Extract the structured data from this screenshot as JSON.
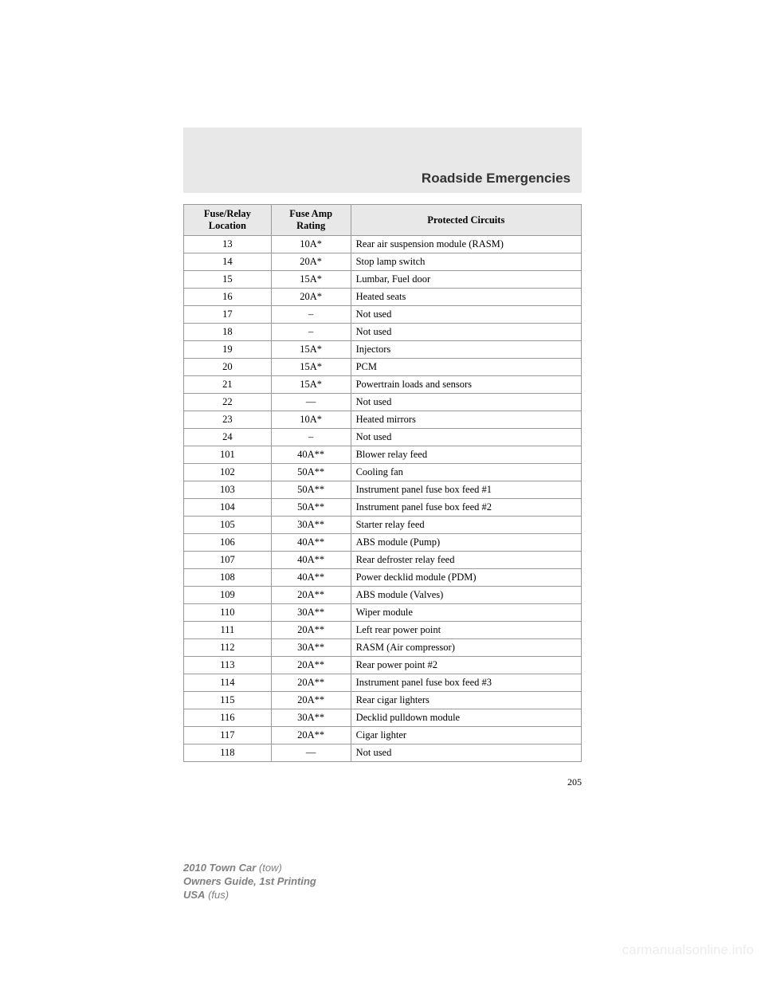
{
  "section_title": "Roadside Emergencies",
  "table": {
    "columns": [
      "Fuse/Relay Location",
      "Fuse Amp Rating",
      "Protected Circuits"
    ],
    "col_widths_pct": [
      22,
      20,
      58
    ],
    "header_bg": "#e8e8e8",
    "border_color": "#999999",
    "font_size_pt": 12.5,
    "rows": [
      {
        "loc": "13",
        "amp": "10A*",
        "circ": "Rear air suspension module (RASM)"
      },
      {
        "loc": "14",
        "amp": "20A*",
        "circ": "Stop lamp switch"
      },
      {
        "loc": "15",
        "amp": "15A*",
        "circ": "Lumbar, Fuel door"
      },
      {
        "loc": "16",
        "amp": "20A*",
        "circ": "Heated seats"
      },
      {
        "loc": "17",
        "amp": "–",
        "circ": "Not used"
      },
      {
        "loc": "18",
        "amp": "–",
        "circ": "Not used"
      },
      {
        "loc": "19",
        "amp": "15A*",
        "circ": "Injectors"
      },
      {
        "loc": "20",
        "amp": "15A*",
        "circ": "PCM"
      },
      {
        "loc": "21",
        "amp": "15A*",
        "circ": "Powertrain loads and sensors"
      },
      {
        "loc": "22",
        "amp": "—",
        "circ": "Not used"
      },
      {
        "loc": "23",
        "amp": "10A*",
        "circ": "Heated mirrors"
      },
      {
        "loc": "24",
        "amp": "–",
        "circ": "Not used"
      },
      {
        "loc": "101",
        "amp": "40A**",
        "circ": "Blower relay feed"
      },
      {
        "loc": "102",
        "amp": "50A**",
        "circ": "Cooling fan"
      },
      {
        "loc": "103",
        "amp": "50A**",
        "circ": "Instrument panel fuse box feed #1"
      },
      {
        "loc": "104",
        "amp": "50A**",
        "circ": "Instrument panel fuse box feed #2"
      },
      {
        "loc": "105",
        "amp": "30A**",
        "circ": "Starter relay feed"
      },
      {
        "loc": "106",
        "amp": "40A**",
        "circ": "ABS module (Pump)"
      },
      {
        "loc": "107",
        "amp": "40A**",
        "circ": "Rear defroster relay feed"
      },
      {
        "loc": "108",
        "amp": "40A**",
        "circ": "Power decklid module (PDM)"
      },
      {
        "loc": "109",
        "amp": "20A**",
        "circ": "ABS module (Valves)"
      },
      {
        "loc": "110",
        "amp": "30A**",
        "circ": "Wiper module"
      },
      {
        "loc": "111",
        "amp": "20A**",
        "circ": "Left rear power point"
      },
      {
        "loc": "112",
        "amp": "30A**",
        "circ": "RASM (Air compressor)"
      },
      {
        "loc": "113",
        "amp": "20A**",
        "circ": "Rear power point #2"
      },
      {
        "loc": "114",
        "amp": "20A**",
        "circ": "Instrument panel fuse box feed #3"
      },
      {
        "loc": "115",
        "amp": "20A**",
        "circ": "Rear cigar lighters"
      },
      {
        "loc": "116",
        "amp": "30A**",
        "circ": "Decklid pulldown module"
      },
      {
        "loc": "117",
        "amp": "20A**",
        "circ": "Cigar lighter"
      },
      {
        "loc": "118",
        "amp": "—",
        "circ": "Not used"
      }
    ]
  },
  "page_number": "205",
  "footer": {
    "line1_bold": "2010 Town Car",
    "line1_ital": " (tow)",
    "line2": "Owners Guide, 1st Printing",
    "line3_bold": "USA",
    "line3_ital": " (fus)"
  },
  "watermark": "carmanualsonline.info",
  "colors": {
    "page_bg": "#ffffff",
    "header_gray": "#e8e8e8",
    "text": "#000000",
    "footer_gray": "#808080",
    "watermark_gray": "#d0d0d0"
  }
}
